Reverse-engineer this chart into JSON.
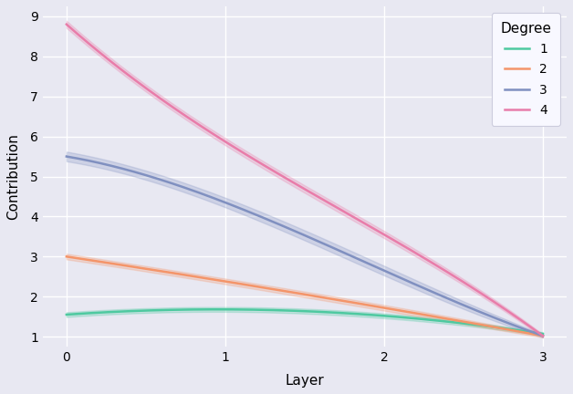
{
  "title": "",
  "xlabel": "Layer",
  "ylabel": "Contribution",
  "xlim": [
    -0.15,
    3.15
  ],
  "ylim": [
    0.75,
    9.25
  ],
  "yticks": [
    1,
    2,
    3,
    4,
    5,
    6,
    7,
    8,
    9
  ],
  "xticks": [
    0,
    1,
    2,
    3
  ],
  "x": [
    0,
    1,
    2,
    3
  ],
  "lines": [
    {
      "label": "1",
      "color": "#4ec9a0",
      "mean": [
        1.55,
        1.68,
        1.52,
        1.07
      ],
      "std": [
        0.06,
        0.06,
        0.06,
        0.04
      ]
    },
    {
      "label": "2",
      "color": "#f4956a",
      "mean": [
        3.0,
        2.38,
        1.72,
        1.02
      ],
      "std": [
        0.07,
        0.07,
        0.07,
        0.04
      ]
    },
    {
      "label": "3",
      "color": "#8090c0",
      "mean": [
        5.5,
        4.35,
        2.65,
        1.02
      ],
      "std": [
        0.12,
        0.12,
        0.12,
        0.04
      ]
    },
    {
      "label": "4",
      "color": "#e87daa",
      "mean": [
        8.8,
        5.87,
        3.55,
        1.02
      ],
      "std": [
        0.09,
        0.09,
        0.09,
        0.04
      ]
    }
  ],
  "legend_title": "Degree",
  "background_color": "#e8e8f2",
  "axes_background": "#e8e8f2",
  "grid_color": "#ffffff",
  "figsize": [
    6.28,
    4.32
  ],
  "dpi": 100
}
